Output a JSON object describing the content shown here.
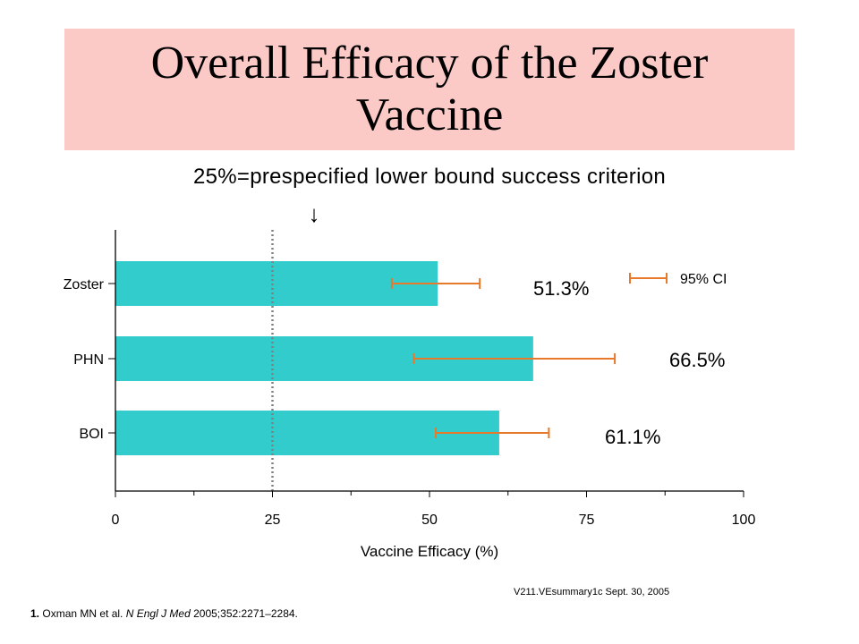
{
  "title": "Overall Efficacy of the Zoster Vaccine",
  "subtitle": "25%=prespecified lower bound success criterion",
  "arrow_glyph": "↓",
  "slide_code": "V211.VEsummary1c Sept. 30, 2005",
  "footnote": {
    "number": "1.",
    "authors": "Oxman MN et al.",
    "journal": "N Engl J Med",
    "citation": "2005;352:2271–2284."
  },
  "colors": {
    "title_background": "#fbc9c6",
    "bar": "#33cccc",
    "error_bar": "#e8782a",
    "reference_line": "#808080"
  },
  "chart_data": {
    "type": "bar",
    "orientation": "horizontal",
    "categories": [
      "Zoster",
      "PHN",
      "BOI"
    ],
    "values": [
      51.3,
      66.5,
      61.1
    ],
    "value_labels": [
      "51.3%",
      "66.5%",
      "61.1%"
    ],
    "ci_low": [
      44,
      47.5,
      51
    ],
    "ci_high": [
      58,
      79.5,
      69
    ],
    "xlabel": "Vaccine Efficacy (%)",
    "xlim": [
      0,
      100
    ],
    "xticks": [
      0,
      25,
      50,
      75,
      100
    ],
    "reference_line": 25,
    "legend": {
      "label": "95% CI"
    },
    "grid": false
  }
}
